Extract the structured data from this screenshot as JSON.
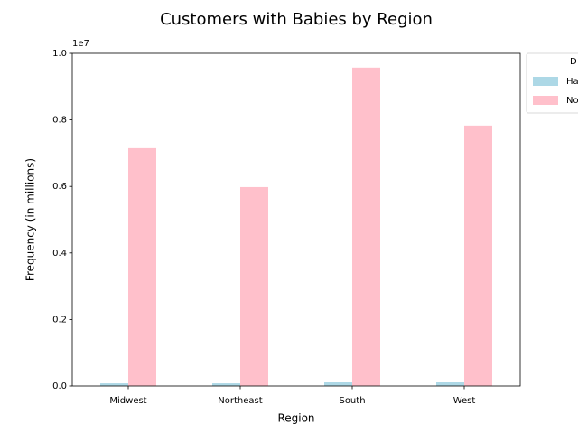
{
  "chart_data": {
    "type": "bar",
    "title": "Customers with Babies by Region",
    "x_label": "Region",
    "y_label": "Frequency (in millions)",
    "y_offset_label": "1e7",
    "categories": [
      "Midwest",
      "Northeast",
      "South",
      "West"
    ],
    "series": [
      {
        "name": "Ha",
        "color": "#add8e6",
        "values": [
          80000,
          80000,
          130000,
          110000
        ]
      },
      {
        "name": "No",
        "color": "#ffc0cb",
        "values": [
          7150000,
          5980000,
          9570000,
          7830000
        ]
      }
    ],
    "legend_title": "D",
    "legend_position": "outside-upper-right",
    "ylim": [
      0,
      10000000
    ],
    "yticks": [
      {
        "value": 0,
        "label": "0.0"
      },
      {
        "value": 2000000,
        "label": "0.2"
      },
      {
        "value": 4000000,
        "label": "0.4"
      },
      {
        "value": 6000000,
        "label": "0.6"
      },
      {
        "value": 8000000,
        "label": "0.8"
      },
      {
        "value": 10000000,
        "label": "1.0"
      }
    ],
    "grid": false
  }
}
